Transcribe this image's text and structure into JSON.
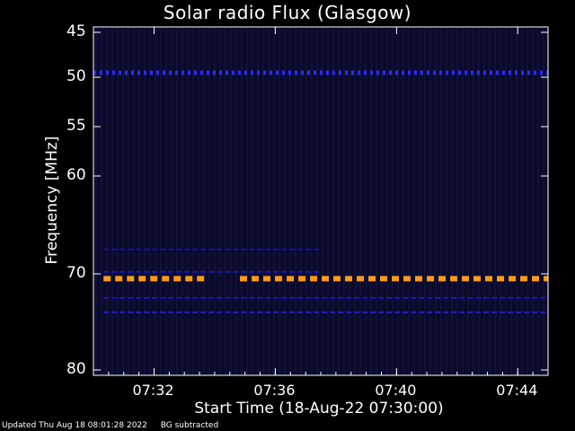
{
  "chart_data": {
    "type": "heatmap",
    "title": "Solar radio Flux (Glasgow)",
    "xlabel": "Start Time (18-Aug-22 07:30:00)",
    "ylabel": "Frequency [MHz]",
    "x_ticks": [
      "07:32",
      "07:36",
      "07:40",
      "07:44"
    ],
    "y_ticks": [
      "45",
      "50",
      "55",
      "60",
      "70",
      "80"
    ],
    "x_range": [
      "07:30:00",
      "07:45:00"
    ],
    "y_range_mhz": [
      45,
      80
    ],
    "bands": [
      {
        "freq_mhz": 49.5,
        "start": "07:30:00",
        "end": "07:45:00",
        "intensity": "medium",
        "color": "#2a2aff"
      },
      {
        "freq_mhz": 70.5,
        "start": "07:30:20",
        "end": "07:33:40",
        "intensity": "high",
        "color": "#ff9a1a"
      },
      {
        "freq_mhz": 70.5,
        "start": "07:34:50",
        "end": "07:45:00",
        "intensity": "high",
        "color": "#ff9a1a"
      },
      {
        "freq_mhz": 67.5,
        "start": "07:30:20",
        "end": "07:37:30",
        "intensity": "low",
        "color": "#1414a0"
      },
      {
        "freq_mhz": 69.8,
        "start": "07:30:20",
        "end": "07:37:30",
        "intensity": "low",
        "color": "#1818b0"
      },
      {
        "freq_mhz": 72.5,
        "start": "07:30:20",
        "end": "07:45:00",
        "intensity": "low",
        "color": "#1818b0"
      },
      {
        "freq_mhz": 74.0,
        "start": "07:30:20",
        "end": "07:45:00",
        "intensity": "low",
        "color": "#2020c0"
      }
    ],
    "background_color": "#0a0a2a",
    "grid": false
  },
  "footer": {
    "updated": "Updated Thu Aug 18 08:01:28 2022",
    "note": "BG subtracted"
  }
}
